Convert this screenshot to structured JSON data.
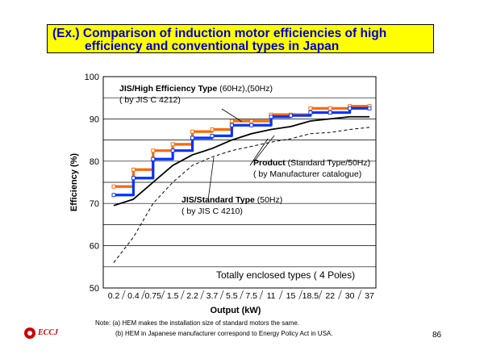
{
  "title": {
    "line1": "(Ex.) Comparison of induction motor efficiencies of high",
    "line2": "efficiency and conventional types in Japan"
  },
  "chart_data": {
    "type": "line",
    "xlabel": "Output (kW)",
    "ylabel": "Efficiency (%)",
    "categories": [
      "0.2",
      "0.4",
      "0.75",
      "1.5",
      "2.2",
      "3.7",
      "5.5",
      "7.5",
      "11",
      "15",
      "18.5",
      "22",
      "30",
      "37"
    ],
    "ylim": [
      50,
      100
    ],
    "yticks": [
      50,
      60,
      70,
      80,
      90,
      100
    ],
    "grid": true,
    "series": [
      {
        "name": "JIS/High Efficiency Type (60Hz)",
        "color": "#ff6600",
        "style": "step",
        "values": [
          74,
          78,
          82.5,
          84,
          87,
          87.5,
          89.5,
          89.5,
          91,
          91,
          92.5,
          92.5,
          93,
          93
        ]
      },
      {
        "name": "JIS/High Efficiency Type (50Hz)",
        "color": "#0033ff",
        "style": "step",
        "values": [
          72,
          76,
          80.5,
          82.5,
          85.5,
          86,
          88.5,
          88.5,
          90.5,
          90.8,
          91.5,
          91.5,
          92.5,
          92.5
        ]
      },
      {
        "name": "Product (Standard Type/50Hz)",
        "color": "#000000",
        "style": "solid",
        "values": [
          69.5,
          71,
          75,
          79,
          81.5,
          83,
          85,
          86.5,
          87.5,
          88.2,
          89.5,
          90,
          90.5,
          90.5
        ]
      },
      {
        "name": "JIS/Standard Type (50Hz)",
        "color": "#000000",
        "style": "dashed",
        "values": [
          56,
          62,
          70,
          75,
          79,
          81,
          82.5,
          83.5,
          84.5,
          85.3,
          86.5,
          86.8,
          87.5,
          88
        ]
      }
    ],
    "annotations": {
      "high_eff_bold": "JIS/High Efficiency Type",
      "high_eff_rest": " (60Hz),(50Hz)",
      "high_eff_std": "( by JIS C 4212)",
      "product_bold": "Product",
      "product_rest": " (Standard Type/50Hz)",
      "product_src": "( by Manufacturer catalogue)",
      "jis_std_bold": "JIS/Standard Type",
      "jis_std_rest": " (50Hz)",
      "jis_std_src": "( by JIS C 4210)",
      "enclosure": "Totally enclosed types ( 4 Poles)"
    }
  },
  "notes": {
    "line1": "Note: (a) HEM makes the installation size of standard motors the same.",
    "line2": "(b) HEM in Japanese manufacturer correspond to Energy Policy Act in USA."
  },
  "footer": {
    "logo_text": "ECCJ",
    "page_number": "86"
  }
}
